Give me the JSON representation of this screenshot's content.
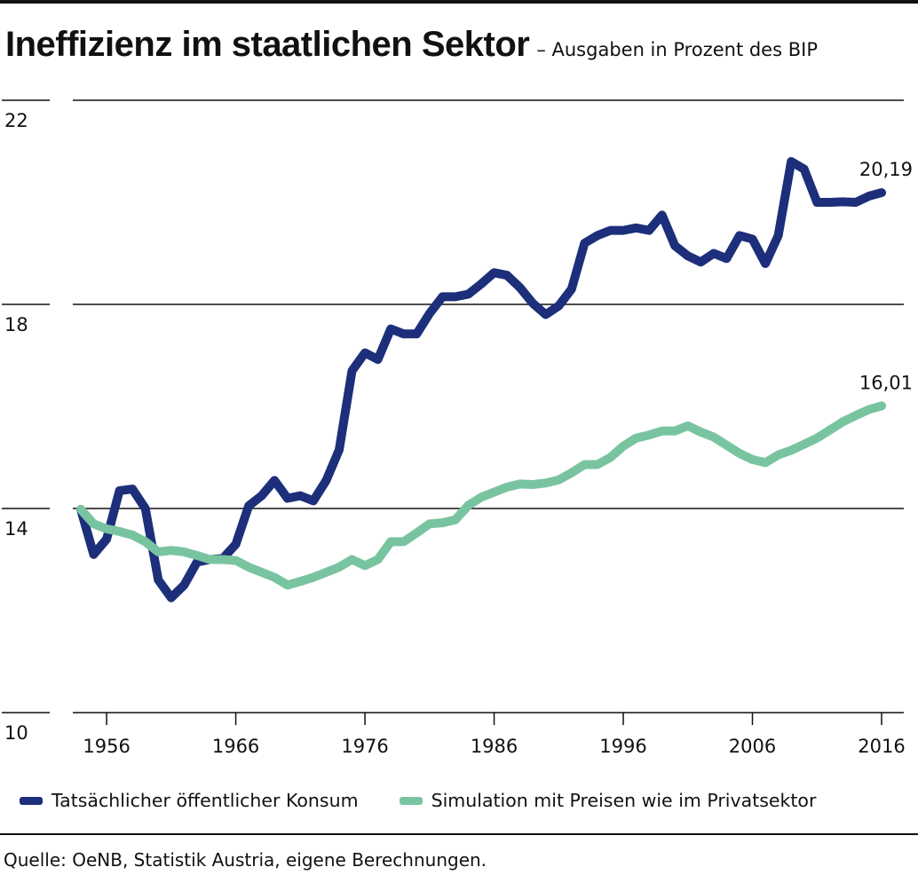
{
  "title": "Ineffizienz im staatlichen Sektor",
  "subtitle": "– Ausgaben in Prozent des BIP",
  "source": "Quelle: OeNB, Statistik Austria, eigene Berechnungen.",
  "colors": {
    "series1": "#1d2f7a",
    "series2": "#79c4a0",
    "text": "#111111"
  },
  "chart_data": {
    "type": "line",
    "xlim": [
      1954,
      2016
    ],
    "ylim": [
      10,
      22
    ],
    "yticks": [
      "22",
      "18",
      "14",
      "10"
    ],
    "xticks": [
      "1956",
      "1966",
      "1976",
      "1986",
      "1996",
      "2006",
      "2016"
    ],
    "grid": true,
    "legend_position": "bottom",
    "x": [
      1954,
      1955,
      1956,
      1957,
      1958,
      1959,
      1960,
      1961,
      1962,
      1963,
      1964,
      1965,
      1966,
      1967,
      1968,
      1969,
      1970,
      1971,
      1972,
      1973,
      1974,
      1975,
      1976,
      1977,
      1978,
      1979,
      1980,
      1981,
      1982,
      1983,
      1984,
      1985,
      1986,
      1987,
      1988,
      1989,
      1990,
      1991,
      1992,
      1993,
      1994,
      1995,
      1996,
      1997,
      1998,
      1999,
      2000,
      2001,
      2002,
      2003,
      2004,
      2005,
      2006,
      2007,
      2008,
      2009,
      2010,
      2011,
      2012,
      2013,
      2014,
      2015,
      2016
    ],
    "series": [
      {
        "name": "Tatsächlicher öffentlicher Konsum",
        "color": "#1d2f7a",
        "values": [
          13.98,
          13.1,
          13.4,
          14.35,
          14.38,
          14.0,
          12.6,
          12.25,
          12.5,
          12.95,
          13.0,
          13.02,
          13.3,
          14.05,
          14.25,
          14.55,
          14.2,
          14.25,
          14.15,
          14.55,
          15.15,
          16.7,
          17.05,
          16.92,
          17.52,
          17.42,
          17.42,
          17.82,
          18.15,
          18.15,
          18.2,
          18.4,
          18.62,
          18.57,
          18.33,
          18.02,
          17.8,
          17.97,
          18.3,
          19.2,
          19.35,
          19.45,
          19.45,
          19.5,
          19.45,
          19.75,
          19.15,
          18.95,
          18.83,
          19.0,
          18.9,
          19.35,
          19.28,
          18.8,
          19.35,
          20.8,
          20.65,
          20.0,
          20.0,
          20.01,
          20.0,
          20.12,
          20.19
        ],
        "end_label": "20,19"
      },
      {
        "name": "Simulation mit Preisen wie im Privatsektor",
        "color": "#79c4a0",
        "values": [
          13.98,
          13.7,
          13.6,
          13.55,
          13.48,
          13.35,
          13.15,
          13.18,
          13.15,
          13.08,
          13.0,
          13.0,
          12.98,
          12.85,
          12.75,
          12.65,
          12.5,
          12.57,
          12.65,
          12.75,
          12.85,
          13.0,
          12.88,
          13.0,
          13.35,
          13.35,
          13.52,
          13.7,
          13.72,
          13.78,
          14.06,
          14.22,
          14.32,
          14.42,
          14.48,
          14.47,
          14.5,
          14.56,
          14.7,
          14.86,
          14.86,
          15.0,
          15.22,
          15.38,
          15.44,
          15.52,
          15.52,
          15.62,
          15.5,
          15.4,
          15.24,
          15.08,
          14.96,
          14.9,
          15.05,
          15.14,
          15.26,
          15.38,
          15.54,
          15.7,
          15.82,
          15.94,
          16.01
        ],
        "end_label": "16,01"
      }
    ]
  }
}
